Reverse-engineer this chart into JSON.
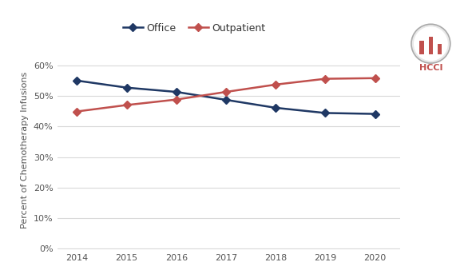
{
  "years": [
    2014,
    2015,
    2016,
    2017,
    2018,
    2019,
    2020
  ],
  "office": [
    0.55,
    0.527,
    0.513,
    0.487,
    0.461,
    0.444,
    0.441
  ],
  "outpatient": [
    0.449,
    0.47,
    0.488,
    0.513,
    0.537,
    0.556,
    0.558
  ],
  "office_color": "#1f3864",
  "outpatient_color": "#c0504d",
  "office_label": "Office",
  "outpatient_label": "Outpatient",
  "ylabel": "Percent of Chemotherapy Infusions",
  "yticks": [
    0.0,
    0.1,
    0.2,
    0.3,
    0.4,
    0.5,
    0.6
  ],
  "ylim": [
    -0.005,
    0.65
  ],
  "xlim": [
    2013.6,
    2020.5
  ],
  "bg_color": "#ffffff",
  "grid_color": "#d9d9d9",
  "marker": "D",
  "linewidth": 1.8,
  "markersize": 5,
  "tick_fontsize": 8,
  "ylabel_fontsize": 8,
  "legend_fontsize": 9,
  "hcci_color": "#c0504d",
  "hcci_text": "HCCI"
}
